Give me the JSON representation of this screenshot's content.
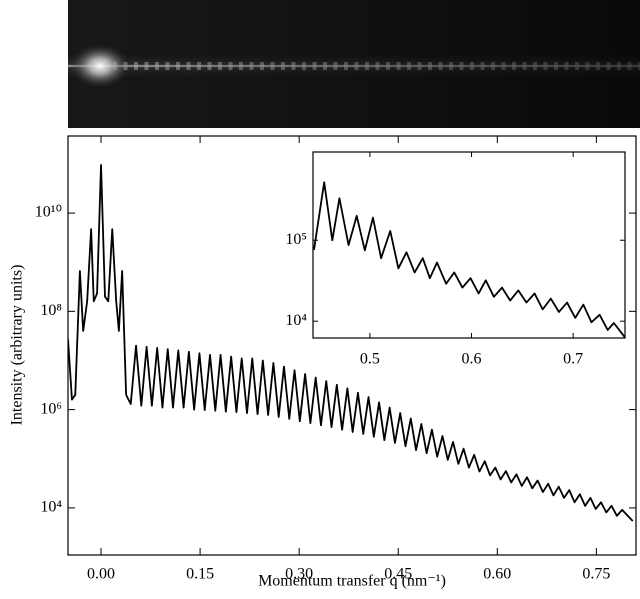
{
  "chart_data": [
    {
      "type": "line",
      "xlabel": "Momentum transfer q (nm⁻¹)",
      "ylabel": "Intensity (arbitrary units)",
      "log_y": true,
      "xlim": [
        -0.05,
        0.81
      ],
      "ylim": [
        1100,
        370000000000.0
      ],
      "xticks": [
        {
          "value": 0,
          "label": "0.00"
        },
        0.15,
        {
          "value": 0.3,
          "label": "0.30"
        },
        0.45,
        {
          "value": 0.6,
          "label": "0.60"
        },
        0.75
      ],
      "yticks": [
        {
          "value": 10000,
          "label": "10⁴"
        },
        {
          "value": 1000000,
          "label": "10⁶"
        },
        {
          "value": 100000000,
          "label": "10⁸"
        },
        {
          "value": 10000000000,
          "label": "10¹⁰"
        }
      ],
      "x": [
        -0.05,
        -0.044,
        -0.039,
        -0.032,
        -0.027,
        -0.021,
        -0.015,
        -0.011,
        -0.006,
        0,
        0.006,
        0.011,
        0.017,
        0.023,
        0.027,
        0.032,
        0.038,
        0.045,
        0.053,
        0.061,
        0.069,
        0.077,
        0.085,
        0.093,
        0.101,
        0.109,
        0.117,
        0.125,
        0.133,
        0.141,
        0.149,
        0.157,
        0.165,
        0.173,
        0.181,
        0.189,
        0.197,
        0.205,
        0.213,
        0.221,
        0.229,
        0.237,
        0.245,
        0.253,
        0.261,
        0.269,
        0.277,
        0.285,
        0.293,
        0.301,
        0.309,
        0.317,
        0.325,
        0.333,
        0.341,
        0.349,
        0.357,
        0.365,
        0.373,
        0.381,
        0.389,
        0.397,
        0.405,
        0.413,
        0.421,
        0.429,
        0.437,
        0.445,
        0.453,
        0.461,
        0.469,
        0.477,
        0.485,
        0.493,
        0.501,
        0.509,
        0.517,
        0.525,
        0.533,
        0.541,
        0.549,
        0.557,
        0.565,
        0.573,
        0.581,
        0.589,
        0.597,
        0.605,
        0.613,
        0.621,
        0.629,
        0.637,
        0.645,
        0.653,
        0.661,
        0.669,
        0.677,
        0.685,
        0.693,
        0.701,
        0.709,
        0.717,
        0.725,
        0.733,
        0.741,
        0.749,
        0.757,
        0.765,
        0.773,
        0.781,
        0.789,
        0.805
      ],
      "series": [
        {
          "color": "#000000",
          "values": [
            27000000.0,
            1600000.0,
            2000000.0,
            660000000.0,
            40000000.0,
            160000000.0,
            4700000000.0,
            160000000.0,
            230000000.0,
            95000000000.0,
            200000000.0,
            160000000.0,
            4700000000.0,
            160000000.0,
            40000000.0,
            660000000.0,
            2000000.0,
            1300000.0,
            20000000.0,
            1200000.0,
            19000000.0,
            1200000.0,
            18000000.0,
            1100000.0,
            17000000.0,
            1100000.0,
            16000000.0,
            1100000.0,
            15000000.0,
            1000000.0,
            14000000.0,
            980000.0,
            13000000.0,
            950000.0,
            13000000.0,
            910000.0,
            12000000.0,
            890000.0,
            11000000.0,
            850000.0,
            11000000.0,
            810000.0,
            10000000.0,
            780000.0,
            8900000.0,
            710000.0,
            7500000.0,
            650000.0,
            6300000.0,
            580000.0,
            5300000.0,
            530000.0,
            4500000.0,
            480000.0,
            3800000.0,
            440000.0,
            3200000.0,
            390000.0,
            2700000.0,
            350000.0,
            2200000.0,
            320000.0,
            1800000.0,
            280000.0,
            1400000.0,
            240000.0,
            1100000.0,
            210000.0,
            850000.0,
            180000.0,
            660000.0,
            150000.0,
            510000.0,
            130000.0,
            390000.0,
            110000.0,
            290000.0,
            95000.0,
            220000.0,
            79000.0,
            160000.0,
            66000.0,
            120000.0,
            55000.0,
            89000.0,
            46000.0,
            66000.0,
            38000.0,
            56000.0,
            33000.0,
            48000.0,
            28000.0,
            42000.0,
            25000.0,
            36000.0,
            21000.0,
            31000.0,
            18000.0,
            27000.0,
            16000.0,
            23000.0,
            13000.0,
            19000.0,
            11000.0,
            16000.0,
            9500.0,
            13000.0,
            8100.0,
            11000.0,
            6900.0,
            9100.0,
            5400.0
          ]
        }
      ]
    },
    {
      "type": "line",
      "log_y": true,
      "xlim": [
        0.444,
        0.751
      ],
      "ylim": [
        6200,
        1230000
      ],
      "xticks": [
        0.5,
        0.6,
        0.7
      ],
      "yticks": [
        {
          "value": 10000,
          "label": "10⁴"
        },
        {
          "value": 100000,
          "label": "10⁵"
        }
      ],
      "x": [
        0.445,
        0.455,
        0.463,
        0.47,
        0.479,
        0.487,
        0.495,
        0.503,
        0.511,
        0.52,
        0.528,
        0.536,
        0.544,
        0.552,
        0.559,
        0.566,
        0.575,
        0.583,
        0.591,
        0.599,
        0.607,
        0.614,
        0.622,
        0.63,
        0.638,
        0.646,
        0.654,
        0.662,
        0.67,
        0.678,
        0.686,
        0.694,
        0.702,
        0.71,
        0.718,
        0.726,
        0.734,
        0.74,
        0.751
      ],
      "series": [
        {
          "color": "#000000",
          "values": [
            76000.0,
            520000.0,
            100000.0,
            330000.0,
            87000.0,
            200000.0,
            75000.0,
            190000.0,
            60000.0,
            130000.0,
            45000.0,
            71000.0,
            40000.0,
            60000.0,
            34000.0,
            53000.0,
            29000.0,
            40000.0,
            26000.0,
            34000.0,
            22000.0,
            32000.0,
            20000.0,
            26000.0,
            18000.0,
            24000.0,
            17000.0,
            22000.0,
            14000.0,
            19000.0,
            13000.0,
            17000.0,
            11000.0,
            16000.0,
            9700.0,
            12000.0,
            7800.0,
            9500.0,
            6300.0
          ]
        }
      ]
    }
  ]
}
